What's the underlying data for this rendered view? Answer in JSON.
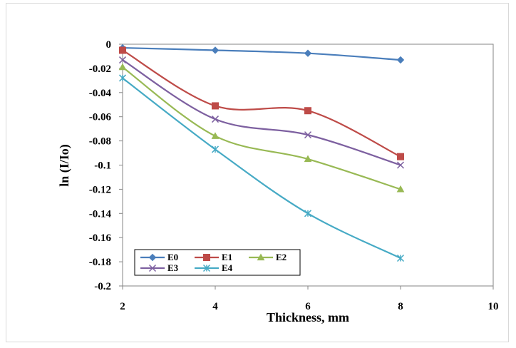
{
  "chart_data": {
    "type": "line",
    "xlabel": "Thickness, mm",
    "ylabel": "ln (I/Io)",
    "xlim": [
      2,
      10
    ],
    "ylim": [
      -0.2,
      0
    ],
    "x_ticks": [
      2,
      4,
      6,
      8,
      10
    ],
    "y_ticks": [
      0,
      -0.02,
      -0.04,
      -0.06,
      -0.08,
      -0.1,
      -0.12,
      -0.14,
      -0.16,
      -0.18,
      -0.2
    ],
    "y_tick_labels": [
      "0",
      "-0.02",
      "-0.04",
      "-0.06",
      "-0.08",
      "-0.1",
      "-0.12",
      "-0.14",
      "-0.16",
      "-0.18",
      "-0.2"
    ],
    "legend_position": "bottom-left",
    "grid": false,
    "series": [
      {
        "name": "E0",
        "color": "#4a7ebb",
        "marker": "diamond",
        "x": [
          2,
          4,
          6,
          8
        ],
        "values": [
          -0.003,
          -0.005,
          -0.0075,
          -0.013
        ]
      },
      {
        "name": "E1",
        "color": "#be4b48",
        "marker": "square",
        "x": [
          2,
          4,
          6,
          8
        ],
        "values": [
          -0.005,
          -0.051,
          -0.055,
          -0.093
        ]
      },
      {
        "name": "E2",
        "color": "#98b954",
        "marker": "triangle",
        "x": [
          2,
          4,
          6,
          8
        ],
        "values": [
          -0.019,
          -0.076,
          -0.095,
          -0.12
        ]
      },
      {
        "name": "E3",
        "color": "#7d60a0",
        "marker": "x",
        "x": [
          2,
          4,
          6,
          8
        ],
        "values": [
          -0.013,
          -0.062,
          -0.075,
          -0.1
        ]
      },
      {
        "name": "E4",
        "color": "#46aac5",
        "marker": "star",
        "x": [
          2,
          4,
          6,
          8
        ],
        "values": [
          -0.028,
          -0.087,
          -0.14,
          -0.177
        ]
      }
    ]
  }
}
